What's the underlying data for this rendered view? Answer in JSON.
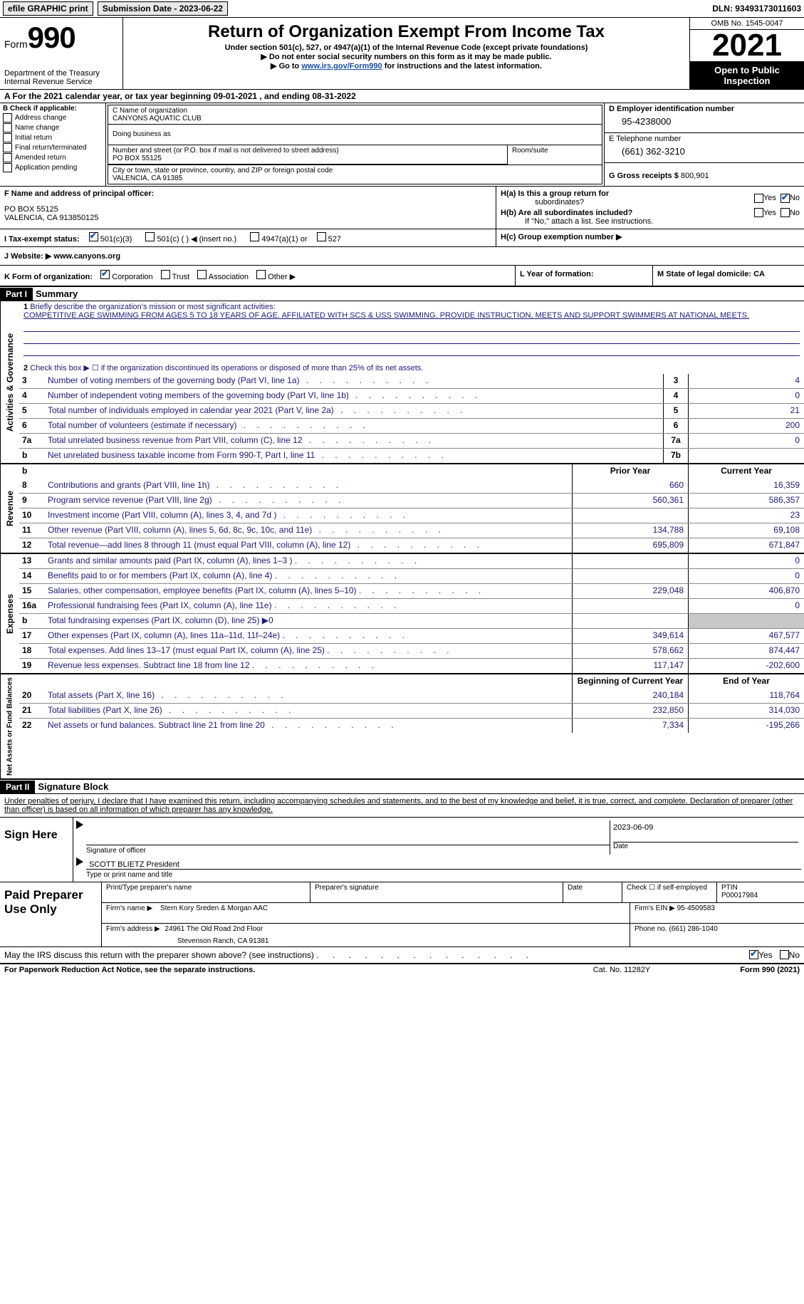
{
  "topbar": {
    "efile": "efile GRAPHIC print",
    "submission": "Submission Date - 2023-06-22",
    "dln": "DLN: 93493173011603"
  },
  "header": {
    "form_label": "Form",
    "form_number": "990",
    "title": "Return of Organization Exempt From Income Tax",
    "subtitle": "Under section 501(c), 527, or 4947(a)(1) of the Internal Revenue Code (except private foundations)",
    "note1": "▶ Do not enter social security numbers on this form as it may be made public.",
    "note2_prefix": "▶ Go to ",
    "note2_link": "www.irs.gov/Form990",
    "note2_suffix": " for instructions and the latest information.",
    "dept": "Department of the Treasury",
    "irs": "Internal Revenue Service",
    "omb": "OMB No. 1545-0047",
    "year": "2021",
    "open_public": "Open to Public Inspection"
  },
  "line_a": "A For the 2021 calendar year, or tax year beginning 09-01-2021    , and ending 08-31-2022",
  "section_b": {
    "label": "B Check if applicable:",
    "items": [
      "Address change",
      "Name change",
      "Initial return",
      "Final return/terminated",
      "Amended return",
      "Application pending"
    ]
  },
  "section_c": {
    "c_label": "C Name of organization",
    "c_name": "CANYONS AQUATIC CLUB",
    "dba_label": "Doing business as",
    "dba": "",
    "street_label": "Number and street (or P.O. box if mail is not delivered to street address)",
    "street": "PO BOX 55125",
    "room_label": "Room/suite",
    "city_label": "City or town, state or province, country, and ZIP or foreign postal code",
    "city": "VALENCIA, CA  91385"
  },
  "section_d": {
    "d_label": "D Employer identification number",
    "d_val": "95-4238000",
    "e_label": "E Telephone number",
    "e_val": "(661) 362-3210",
    "g_label": "G Gross receipts $ ",
    "g_val": "800,901"
  },
  "section_f": {
    "f_label": "F Name and address of principal officer:",
    "f_addr1": "PO BOX 55125",
    "f_addr2": "VALENCIA, CA  913850125"
  },
  "section_h": {
    "ha_label": "H(a)  Is this a group return for",
    "ha_sub": "subordinates?",
    "hb_label": "H(b)  Are all subordinates included?",
    "hb_note": "If \"No,\" attach a list. See instructions.",
    "hc_label": "H(c)  Group exemption number ▶",
    "yes": "Yes",
    "no": "No"
  },
  "row_i": {
    "label": "I  Tax-exempt status:",
    "opt1": "501(c)(3)",
    "opt2": "501(c) (   ) ◀ (insert no.)",
    "opt3": "4947(a)(1) or",
    "opt4": "527"
  },
  "row_j": {
    "left": "J  Website: ▶   www.canyons.org"
  },
  "row_k": {
    "k_label": "K Form of organization:",
    "k_opts": [
      "Corporation",
      "Trust",
      "Association",
      "Other ▶"
    ],
    "l_label": "L Year of formation:",
    "m_label": "M State of legal domicile: CA"
  },
  "part1": {
    "header": "Part I",
    "title": "Summary",
    "line1_label": "Briefly describe the organization's mission or most significant activities:",
    "line1_text": "COMPETITIVE AGE SWIMMING FROM AGES 5 TO 18 YEARS OF AGE. AFFILIATED WITH SCS & USS SWIMMING. PROVIDE INSTRUCTION, MEETS AND SUPPORT SWIMMERS AT NATIONAL MEETS.",
    "line2": "Check this box ▶ ☐ if the organization discontinued its operations or disposed of more than 25% of its net assets.",
    "rows_top": [
      {
        "num": "3",
        "desc": "Number of voting members of the governing body (Part VI, line 1a)",
        "box": "3",
        "val": "4"
      },
      {
        "num": "4",
        "desc": "Number of independent voting members of the governing body (Part VI, line 1b)",
        "box": "4",
        "val": "0"
      },
      {
        "num": "5",
        "desc": "Total number of individuals employed in calendar year 2021 (Part V, line 2a)",
        "box": "5",
        "val": "21"
      },
      {
        "num": "6",
        "desc": "Total number of volunteers (estimate if necessary)",
        "box": "6",
        "val": "200"
      },
      {
        "num": "7a",
        "desc": "Total unrelated business revenue from Part VIII, column (C), line 12",
        "box": "7a",
        "val": "0"
      },
      {
        "num": "b",
        "desc": "Net unrelated business taxable income from Form 990-T, Part I, line 11",
        "box": "7b",
        "val": ""
      }
    ],
    "prior_year": "Prior Year",
    "current_year": "Current Year",
    "revenue_rows": [
      {
        "num": "8",
        "desc": "Contributions and grants (Part VIII, line 1h)",
        "prior": "660",
        "curr": "16,359"
      },
      {
        "num": "9",
        "desc": "Program service revenue (Part VIII, line 2g)",
        "prior": "560,361",
        "curr": "586,357"
      },
      {
        "num": "10",
        "desc": "Investment income (Part VIII, column (A), lines 3, 4, and 7d )",
        "prior": "",
        "curr": "23"
      },
      {
        "num": "11",
        "desc": "Other revenue (Part VIII, column (A), lines 5, 6d, 8c, 9c, 10c, and 11e)",
        "prior": "134,788",
        "curr": "69,108"
      },
      {
        "num": "12",
        "desc": "Total revenue—add lines 8 through 11 (must equal Part VIII, column (A), line 12)",
        "prior": "695,809",
        "curr": "671,847"
      }
    ],
    "expense_rows": [
      {
        "num": "13",
        "desc": "Grants and similar amounts paid (Part IX, column (A), lines 1–3 )",
        "prior": "",
        "curr": "0"
      },
      {
        "num": "14",
        "desc": "Benefits paid to or for members (Part IX, column (A), line 4)",
        "prior": "",
        "curr": "0"
      },
      {
        "num": "15",
        "desc": "Salaries, other compensation, employee benefits (Part IX, column (A), lines 5–10)",
        "prior": "229,048",
        "curr": "406,870"
      },
      {
        "num": "16a",
        "desc": "Professional fundraising fees (Part IX, column (A), line 11e)",
        "prior": "",
        "curr": "0"
      },
      {
        "num": "b",
        "desc": "Total fundraising expenses (Part IX, column (D), line 25) ▶0",
        "prior": "grey",
        "curr": "grey"
      },
      {
        "num": "17",
        "desc": "Other expenses (Part IX, column (A), lines 11a–11d, 11f–24e)",
        "prior": "349,614",
        "curr": "467,577"
      },
      {
        "num": "18",
        "desc": "Total expenses. Add lines 13–17 (must equal Part IX, column (A), line 25)",
        "prior": "578,662",
        "curr": "874,447"
      },
      {
        "num": "19",
        "desc": "Revenue less expenses. Subtract line 18 from line 12",
        "prior": "117,147",
        "curr": "-202,600"
      }
    ],
    "begin_year": "Beginning of Current Year",
    "end_year": "End of Year",
    "net_rows": [
      {
        "num": "20",
        "desc": "Total assets (Part X, line 16)",
        "prior": "240,184",
        "curr": "118,764"
      },
      {
        "num": "21",
        "desc": "Total liabilities (Part X, line 26)",
        "prior": "232,850",
        "curr": "314,030"
      },
      {
        "num": "22",
        "desc": "Net assets or fund balances. Subtract line 21 from line 20",
        "prior": "7,334",
        "curr": "-195,266"
      }
    ]
  },
  "side_labels": {
    "activities": "Activities & Governance",
    "revenue": "Revenue",
    "expenses": "Expenses",
    "net": "Net Assets or Fund Balances"
  },
  "part2": {
    "header": "Part II",
    "title": "Signature Block",
    "declare": "Under penalties of perjury, I declare that I have examined this return, including accompanying schedules and statements, and to the best of my knowledge and belief, it is true, correct, and complete. Declaration of preparer (other than officer) is based on all information of which preparer has any knowledge.",
    "sign_here": "Sign Here",
    "sig_officer": "Signature of officer",
    "sig_date": "2023-06-09",
    "date_label": "Date",
    "officer_name": "SCOTT BLIETZ  President",
    "type_name": "Type or print name and title",
    "paid": "Paid Preparer Use Only",
    "print_name_label": "Print/Type preparer's name",
    "prep_sig_label": "Preparer's signature",
    "check_label": "Check ☐ if self-employed",
    "ptin_label": "PTIN",
    "ptin": "P00017984",
    "firm_name_label": "Firm's name     ▶",
    "firm_name": "Stern Kory Sreden & Morgan AAC",
    "firm_ein_label": "Firm's EIN ▶",
    "firm_ein": "95-4509583",
    "firm_addr_label": "Firm's address ▶",
    "firm_addr1": "24961 The Old Road 2nd Floor",
    "firm_addr2": "Stevenson Ranch, CA  91381",
    "phone_label": "Phone no.",
    "phone": "(661) 286-1040",
    "may_irs": "May the IRS discuss this return with the preparer shown above? (see instructions)",
    "may_yes": "Yes",
    "may_no": "No"
  },
  "footer": {
    "left": "For Paperwork Reduction Act Notice, see the separate instructions.",
    "mid": "Cat. No. 11282Y",
    "right": "Form 990 (2021)"
  }
}
